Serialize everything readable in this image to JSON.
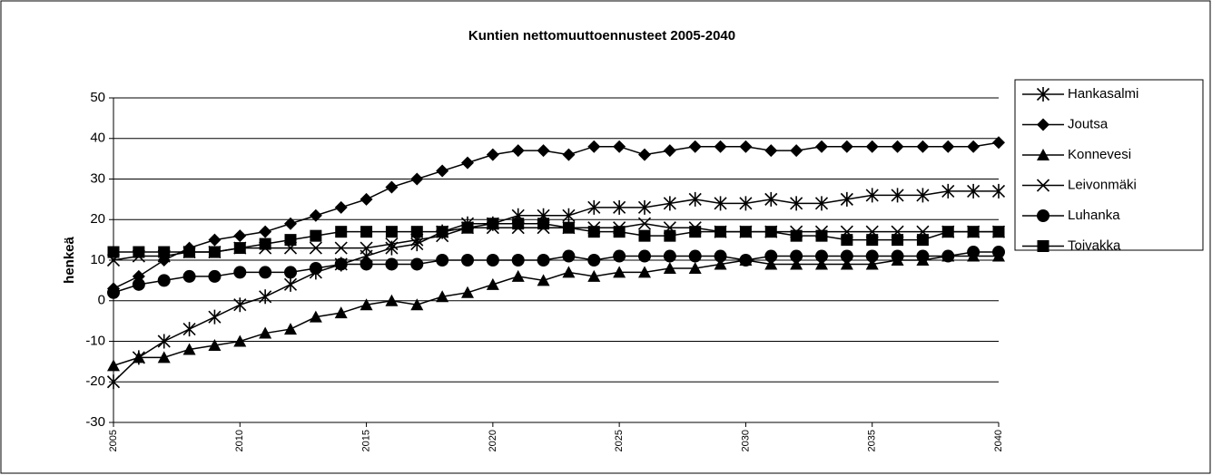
{
  "chart_data": {
    "type": "line",
    "title": "Kuntien nettomuuttoennusteet 2005-2040",
    "y_label": "henkeä",
    "x": [
      2005,
      2006,
      2007,
      2008,
      2009,
      2010,
      2011,
      2012,
      2013,
      2014,
      2015,
      2016,
      2017,
      2018,
      2019,
      2020,
      2021,
      2022,
      2023,
      2024,
      2025,
      2026,
      2027,
      2028,
      2029,
      2030,
      2031,
      2032,
      2033,
      2034,
      2035,
      2036,
      2037,
      2038,
      2039,
      2040
    ],
    "xlim": [
      2005,
      2040
    ],
    "xticks": [
      2005,
      2010,
      2015,
      2020,
      2025,
      2030,
      2035,
      2040
    ],
    "ylim": [
      -30,
      50
    ],
    "yticks": [
      -30,
      -20,
      -10,
      0,
      10,
      20,
      30,
      40,
      50
    ],
    "grid": true,
    "legend": "right",
    "series": [
      {
        "name": "Hankasalmi",
        "color": "#000000",
        "marker": "asterisk",
        "values": [
          -20,
          -14,
          -10,
          -7,
          -4,
          -1,
          1,
          4,
          7,
          9,
          11,
          13,
          14,
          17,
          19,
          19,
          21,
          21,
          21,
          23,
          23,
          23,
          24,
          25,
          24,
          24,
          25,
          24,
          24,
          25,
          26,
          26,
          26,
          27,
          27,
          27
        ]
      },
      {
        "name": "Joutsa",
        "color": "#000000",
        "marker": "diamond",
        "values": [
          3,
          6,
          10,
          13,
          15,
          16,
          17,
          19,
          21,
          23,
          25,
          28,
          30,
          32,
          34,
          36,
          37,
          37,
          36,
          38,
          38,
          36,
          37,
          38,
          38,
          38,
          37,
          37,
          38,
          38,
          38,
          38,
          38,
          38,
          38,
          39
        ]
      },
      {
        "name": "Konnevesi",
        "color": "#000000",
        "marker": "triangle",
        "values": [
          -16,
          -14,
          -14,
          -12,
          -11,
          -10,
          -8,
          -7,
          -4,
          -3,
          -1,
          0,
          -1,
          1,
          2,
          4,
          6,
          5,
          7,
          6,
          7,
          7,
          8,
          8,
          9,
          10,
          9,
          9,
          9,
          9,
          9,
          10,
          10,
          11,
          11,
          11
        ]
      },
      {
        "name": "Leivonmäki",
        "color": "#000000",
        "marker": "x",
        "values": [
          10,
          11,
          11,
          12,
          12,
          13,
          13,
          13,
          13,
          13,
          13,
          14,
          15,
          16,
          18,
          18,
          18,
          18,
          18,
          18,
          18,
          19,
          18,
          18,
          17,
          17,
          17,
          17,
          17,
          17,
          17,
          17,
          17,
          17,
          17,
          17
        ]
      },
      {
        "name": "Luhanka",
        "color": "#000000",
        "marker": "circle",
        "values": [
          2,
          4,
          5,
          6,
          6,
          7,
          7,
          7,
          8,
          9,
          9,
          9,
          9,
          10,
          10,
          10,
          10,
          10,
          11,
          10,
          11,
          11,
          11,
          11,
          11,
          10,
          11,
          11,
          11,
          11,
          11,
          11,
          11,
          11,
          12,
          12
        ]
      },
      {
        "name": "Toivakka",
        "color": "#000000",
        "marker": "square",
        "values": [
          12,
          12,
          12,
          12,
          12,
          13,
          14,
          15,
          16,
          17,
          17,
          17,
          17,
          17,
          18,
          19,
          19,
          19,
          18,
          17,
          17,
          16,
          16,
          17,
          17,
          17,
          17,
          16,
          16,
          15,
          15,
          15,
          15,
          17,
          17,
          17
        ]
      }
    ]
  }
}
